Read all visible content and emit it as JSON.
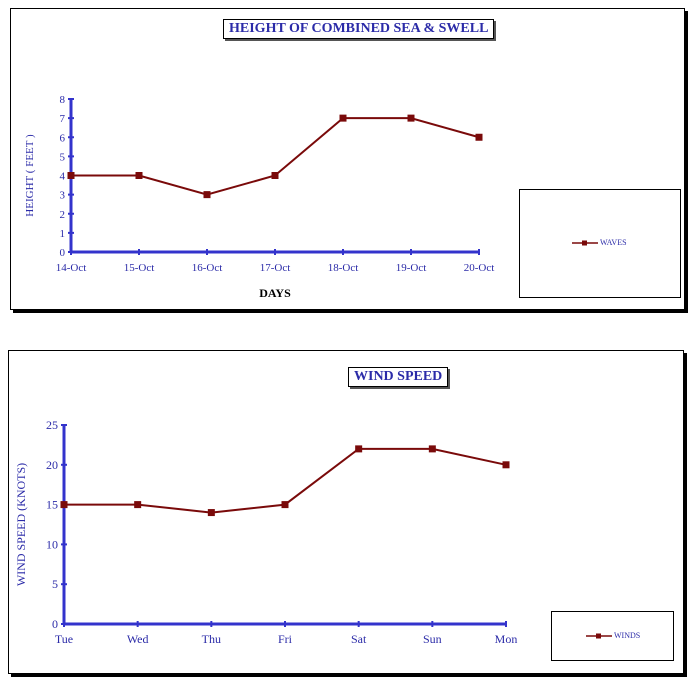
{
  "chart_data": [
    {
      "type": "line",
      "title": "HEIGHT OF COMBINED SEA & SWELL",
      "xlabel": "DAYS",
      "ylabel": "HEIGHT ( FEET )",
      "categories": [
        "14-Oct",
        "15-Oct",
        "16-Oct",
        "17-Oct",
        "18-Oct",
        "19-Oct",
        "20-Oct"
      ],
      "ylim": [
        0,
        8
      ],
      "yticks": [
        0,
        1,
        2,
        3,
        4,
        5,
        6,
        7,
        8
      ],
      "series": [
        {
          "name": "WAVES",
          "values": [
            4,
            4,
            3,
            4,
            7,
            7,
            6
          ],
          "color": "#7a0a0a"
        }
      ],
      "grid": false,
      "legend": "right"
    },
    {
      "type": "line",
      "title": "WIND SPEED",
      "xlabel": "",
      "ylabel": "WIND SPEED (KNOTS)",
      "categories": [
        "Tue",
        "Wed",
        "Thu",
        "Fri",
        "Sat",
        "Sun",
        "Mon"
      ],
      "ylim": [
        0,
        25
      ],
      "yticks": [
        0,
        5,
        10,
        15,
        20,
        25
      ],
      "series": [
        {
          "name": "WINDS",
          "values": [
            15,
            15,
            14,
            15,
            22,
            22,
            20
          ],
          "color": "#7a0a0a"
        }
      ],
      "grid": false,
      "legend": "bottom-right"
    }
  ],
  "colors": {
    "axis": "#3333cc",
    "text": "#2b2ba8",
    "line": "#7a0a0a"
  }
}
